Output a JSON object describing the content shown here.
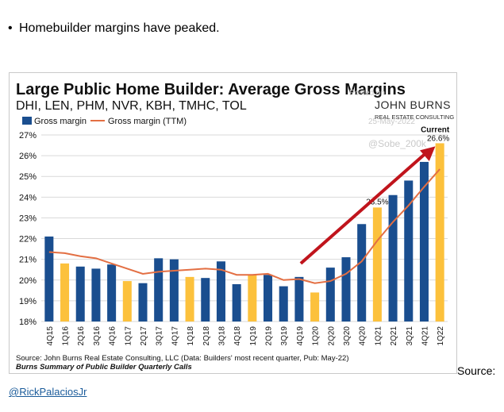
{
  "post": {
    "bullet": "•",
    "headline": "Homebuilder margins have peaked.",
    "source_tail": "Source:",
    "author": "@RickPalaciosJr"
  },
  "watermarks": {
    "posted_on": "Posted on",
    "date": "25-May-2022",
    "handle": "@Sobe_200k"
  },
  "logo": {
    "brand": "JOHN BURNS",
    "sub": "REAL ESTATE CONSULTING"
  },
  "colors": {
    "bar_default": "#1a4e8f",
    "bar_q1": "#fcc13c",
    "ttm_line": "#e36f43",
    "arrow": "#c0141c",
    "grid": "#d9d9d9"
  },
  "chart_data": {
    "type": "bar",
    "title": "Large Public Home Builder: Average Gross Margins",
    "subtitle": "DHI, LEN, PHM, NVR, KBH, TMHC, TOL",
    "legend_position": "top-left",
    "categories": [
      "4Q15",
      "1Q16",
      "2Q16",
      "3Q16",
      "4Q16",
      "1Q17",
      "2Q17",
      "3Q17",
      "4Q17",
      "1Q18",
      "2Q18",
      "3Q18",
      "4Q18",
      "1Q19",
      "2Q19",
      "3Q19",
      "4Q19",
      "1Q20",
      "2Q20",
      "3Q20",
      "4Q20",
      "1Q21",
      "2Q21",
      "3Q21",
      "4Q21",
      "1Q22"
    ],
    "series": [
      {
        "name": "Gross margin",
        "kind": "bar",
        "values": [
          22.1,
          20.8,
          20.65,
          20.55,
          20.75,
          19.95,
          19.85,
          21.05,
          21.0,
          20.15,
          20.1,
          20.9,
          19.8,
          20.25,
          20.25,
          19.7,
          20.15,
          19.4,
          20.6,
          21.1,
          22.7,
          23.5,
          24.1,
          24.8,
          25.7,
          26.6
        ],
        "highlight_categories_prefix": "1Q"
      },
      {
        "name": "Gross margin (TTM)",
        "kind": "line",
        "values": [
          21.35,
          21.3,
          21.15,
          21.05,
          20.8,
          20.55,
          20.3,
          20.4,
          20.45,
          20.5,
          20.55,
          20.5,
          20.25,
          20.25,
          20.3,
          20.0,
          20.05,
          19.85,
          19.95,
          20.3,
          20.9,
          21.9,
          22.8,
          23.6,
          24.5,
          25.35
        ]
      }
    ],
    "ylim": [
      18,
      27
    ],
    "yticks": [
      "18%",
      "19%",
      "20%",
      "21%",
      "22%",
      "23%",
      "24%",
      "25%",
      "26%",
      "27%"
    ],
    "grid": true,
    "annotations": [
      {
        "category": "1Q21",
        "text": "23.5%"
      },
      {
        "category": "1Q22",
        "text": "Current"
      },
      {
        "category": "1Q22",
        "text": "26.6%"
      }
    ],
    "source": "Source: John Burns Real Estate Consulting, LLC (Data: Builders' most recent quarter, Pub: May-22)",
    "footnote": "Burns Summary of Public Builder Quarterly Calls"
  }
}
